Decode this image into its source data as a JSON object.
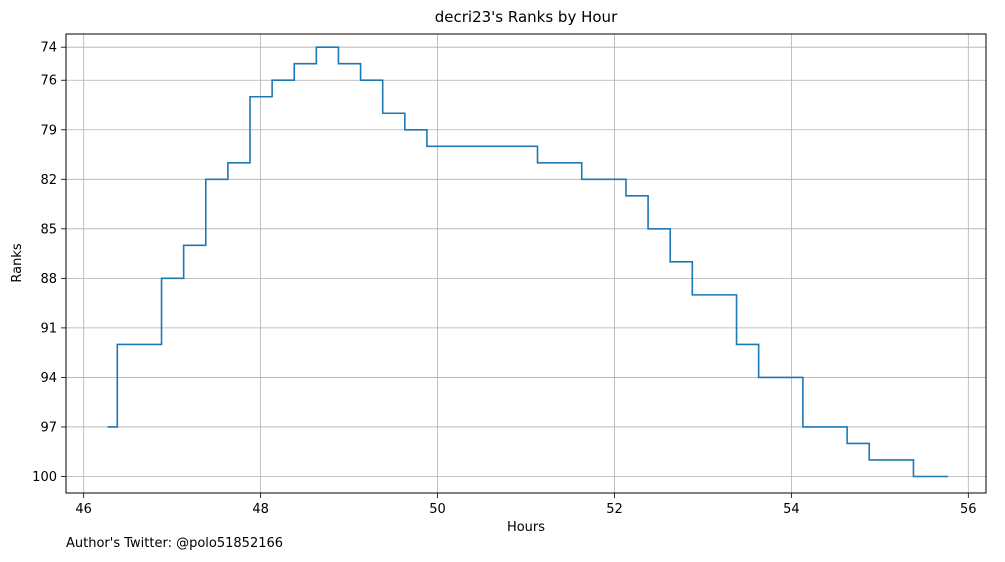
{
  "chart_data": {
    "type": "line",
    "title": "decri23's Ranks by Hour",
    "xlabel": "Hours",
    "ylabel": "Ranks",
    "xlim": [
      45.8,
      56.2
    ],
    "ylim": [
      101.0,
      73.2
    ],
    "y_inverted": true,
    "xticks": [
      46,
      48,
      50,
      52,
      54,
      56
    ],
    "yticks": [
      74,
      76,
      79,
      82,
      85,
      88,
      91,
      94,
      97,
      100
    ],
    "grid": true,
    "step": "post",
    "color": "#1f77b4",
    "series": [
      {
        "x": [
          46.27,
          46.38,
          46.88,
          47.13,
          47.38,
          47.63,
          47.88,
          48.13,
          48.38,
          48.63,
          48.88,
          49.13,
          49.38,
          49.63,
          49.88,
          51.13,
          51.63,
          52.13,
          52.38,
          52.63,
          52.88,
          53.38,
          53.63,
          54.13,
          54.63,
          54.88,
          55.38,
          55.77
        ],
        "y": [
          97,
          92,
          88,
          86,
          82,
          81,
          77,
          76,
          75,
          74,
          75,
          76,
          78,
          79,
          80,
          81,
          82,
          83,
          85,
          87,
          89,
          92,
          94,
          97,
          98,
          99,
          100,
          100
        ]
      }
    ]
  },
  "footer": {
    "credit": "Author's Twitter: @polo51852166"
  }
}
